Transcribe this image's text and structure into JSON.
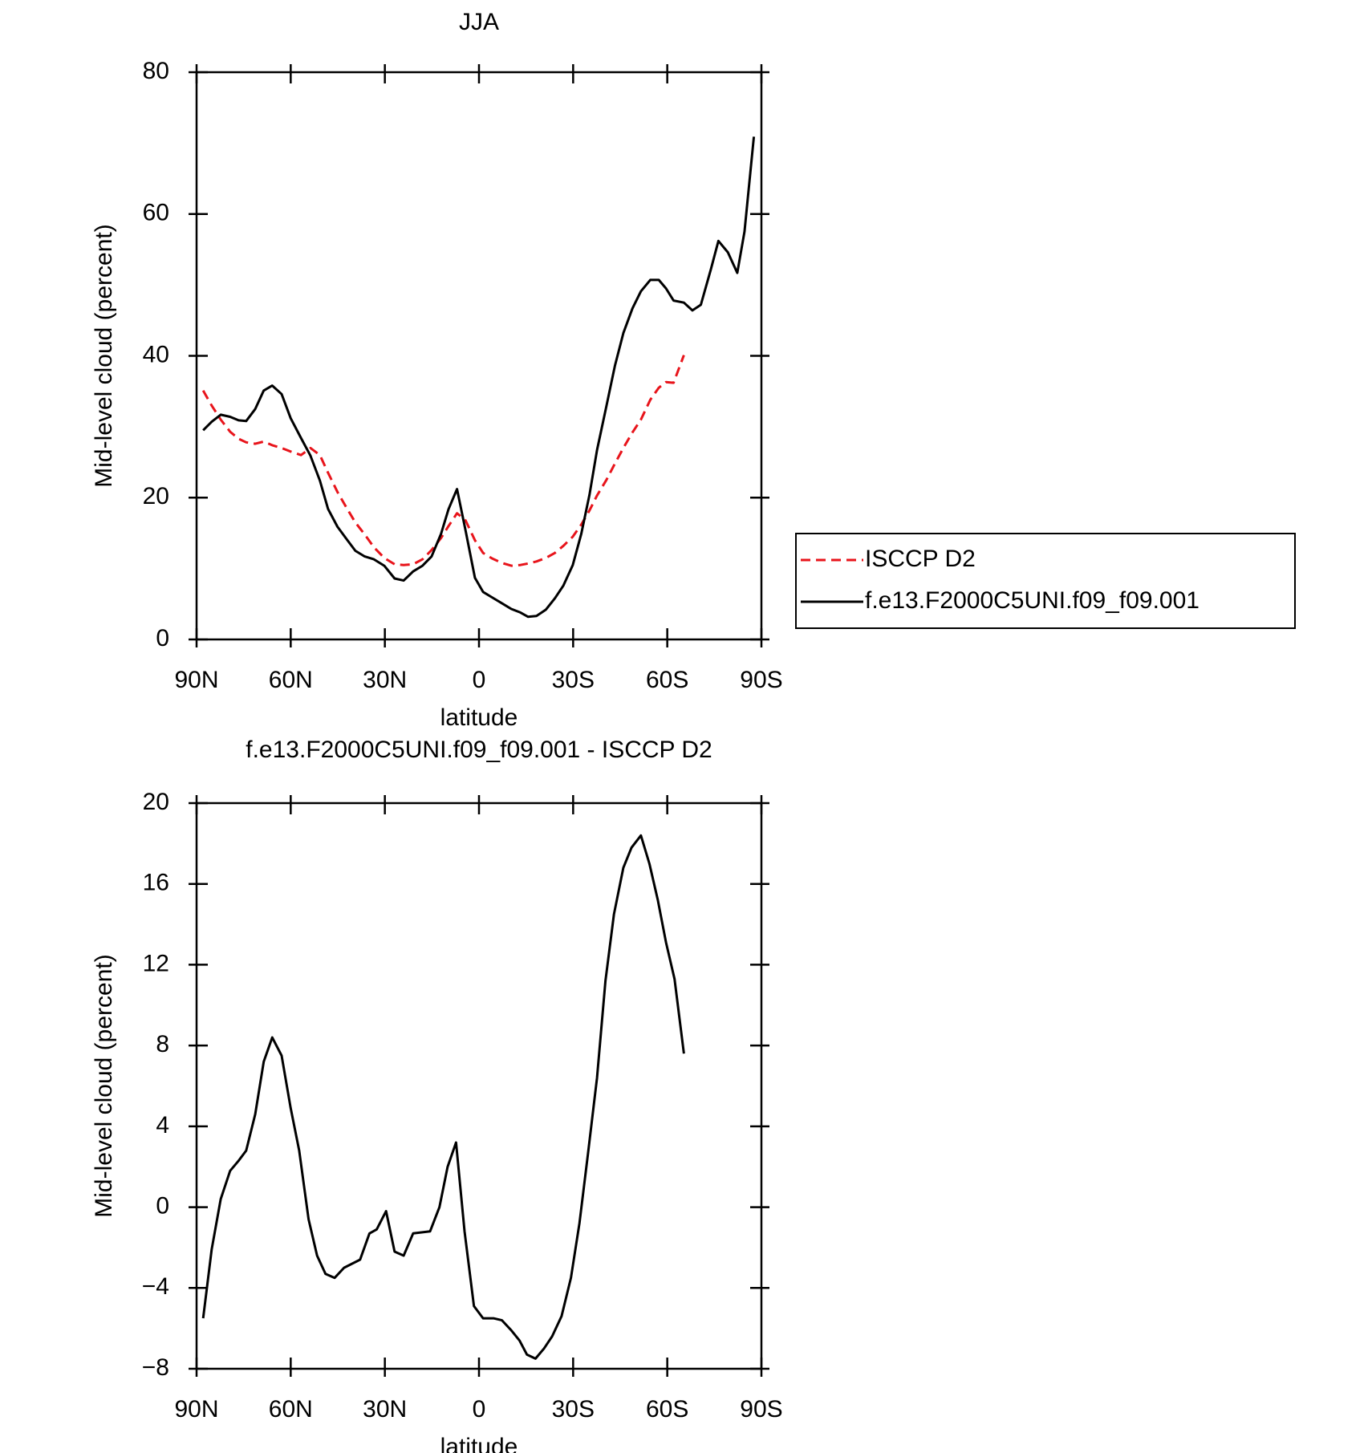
{
  "chart_data": [
    {
      "type": "line",
      "title": "JJA",
      "xlabel": "latitude",
      "ylabel": "Mid-level cloud (percent)",
      "xlim": [
        90,
        -90
      ],
      "xticks": [
        {
          "value": 90,
          "label": "90N"
        },
        {
          "value": 60,
          "label": "60N"
        },
        {
          "value": 30,
          "label": "30N"
        },
        0,
        {
          "value": -30,
          "label": "30S"
        },
        {
          "value": -60,
          "label": "60S"
        },
        {
          "value": -90,
          "label": "90S"
        }
      ],
      "ylim": [
        0,
        80
      ],
      "yticks": [
        0,
        20,
        40,
        60,
        80
      ],
      "legend": "right",
      "x": [
        87.9,
        85.2,
        82.3,
        79.3,
        76.6,
        74.2,
        71.3,
        68.6,
        65.9,
        62.9,
        60.0,
        56.7,
        53.7,
        50.7,
        48.1,
        45.1,
        42.1,
        39.4,
        36.4,
        33.5,
        30.2,
        26.9,
        24.0,
        21.0,
        18.0,
        15.1,
        12.1,
        9.7,
        7.0,
        4.3,
        1.3,
        -1.3,
        -4.3,
        -7.3,
        -10.3,
        -13.2,
        -15.6,
        -18.3,
        -21.3,
        -24.2,
        -26.9,
        -29.9,
        -32.6,
        -35.2,
        -37.6,
        -40.6,
        -43.3,
        -46.0,
        -48.9,
        -51.6,
        -54.6,
        -57.3,
        -59.6,
        -62.0,
        -65.3,
        -68.0,
        -70.7,
        -73.9,
        -76.3,
        -79.3,
        -82.3,
        -84.6,
        -87.6
      ],
      "series": [
        {
          "name": "ISCCP D2",
          "color": "#e8141b",
          "dash": true,
          "values": [
            35.1,
            33.0,
            31.0,
            29.3,
            28.3,
            27.8,
            27.6,
            27.9,
            27.4,
            27.0,
            26.5,
            26.0,
            27.0,
            26.0,
            23.5,
            20.8,
            18.5,
            16.5,
            14.8,
            13.0,
            11.5,
            10.6,
            10.5,
            10.6,
            11.3,
            12.6,
            14.3,
            16.0,
            17.8,
            16.8,
            14.0,
            12.2,
            11.4,
            10.8,
            10.4,
            10.5,
            10.7,
            11.0,
            11.5,
            12.2,
            13.2,
            14.5,
            16.2,
            18.2,
            20.3,
            22.5,
            24.8,
            27.0,
            29.2,
            31.0,
            33.8,
            35.5,
            36.3,
            36.2,
            40.1,
            null,
            null,
            null,
            null,
            null,
            null,
            null,
            null
          ]
        },
        {
          "name": "f.e13.F2000C5UNI.f09_f09.001",
          "color": "#000000",
          "dash": false,
          "values": [
            29.5,
            30.7,
            31.7,
            31.4,
            30.9,
            30.8,
            32.5,
            35.1,
            35.8,
            34.6,
            31.2,
            28.4,
            25.9,
            22.4,
            18.4,
            15.9,
            14.1,
            12.5,
            11.7,
            11.3,
            10.4,
            8.6,
            8.3,
            9.6,
            10.4,
            11.7,
            14.9,
            18.4,
            21.2,
            15.4,
            8.7,
            6.7,
            5.9,
            5.1,
            4.3,
            3.8,
            3.2,
            3.3,
            4.2,
            5.8,
            7.6,
            10.5,
            14.9,
            20.4,
            26.7,
            32.9,
            38.6,
            43.2,
            46.7,
            49.1,
            50.7,
            50.7,
            49.5,
            47.8,
            47.5,
            46.4,
            47.2,
            52.2,
            56.2,
            54.6,
            51.7,
            57.5,
            70.9
          ]
        }
      ]
    },
    {
      "type": "line",
      "title": "f.e13.F2000C5UNI.f09_f09.001 - ISCCP D2",
      "xlabel": "latitude",
      "ylabel": "Mid-level cloud (percent)",
      "xlim": [
        90,
        -90
      ],
      "xticks": [
        {
          "value": 90,
          "label": "90N"
        },
        {
          "value": 60,
          "label": "60N"
        },
        {
          "value": 30,
          "label": "30N"
        },
        0,
        {
          "value": -30,
          "label": "30S"
        },
        {
          "value": -60,
          "label": "60S"
        },
        {
          "value": -90,
          "label": "90S"
        }
      ],
      "ylim": [
        -8,
        20
      ],
      "yticks": [
        {
          "value": -8,
          "label": "−8"
        },
        {
          "value": -4,
          "label": "−4"
        },
        0,
        4,
        8,
        12,
        16,
        20
      ],
      "x": [
        87.9,
        85.2,
        82.3,
        79.3,
        76.6,
        74.2,
        71.3,
        68.6,
        65.9,
        62.9,
        60.0,
        57.3,
        54.3,
        51.6,
        48.9,
        46.0,
        43.0,
        37.9,
        34.9,
        32.6,
        29.6,
        26.9,
        24.0,
        21.0,
        15.6,
        12.6,
        10.0,
        7.3,
        4.6,
        1.6,
        -1.3,
        -4.6,
        -7.3,
        -10.3,
        -12.9,
        -15.3,
        -18.0,
        -20.7,
        -23.3,
        -26.3,
        -29.3,
        -32.0,
        -34.7,
        -37.6,
        -40.3,
        -43.0,
        -46.0,
        -48.6,
        -51.6,
        -54.3,
        -57.0,
        -59.6,
        -62.3,
        -65.3
      ],
      "series": [
        {
          "color": "#000000",
          "dash": false,
          "values": [
            -5.5,
            -2.1,
            0.4,
            1.8,
            2.3,
            2.8,
            4.6,
            7.2,
            8.4,
            7.5,
            4.9,
            2.8,
            -0.6,
            -2.4,
            -3.3,
            -3.5,
            -3.0,
            -2.6,
            -1.3,
            -1.1,
            -0.2,
            -2.2,
            -2.4,
            -1.3,
            -1.2,
            0.0,
            2.0,
            3.2,
            -1.2,
            -4.9,
            -5.5,
            -5.5,
            -5.6,
            -6.1,
            -6.6,
            -7.3,
            -7.5,
            -7.0,
            -6.4,
            -5.4,
            -3.5,
            -0.8,
            2.6,
            6.4,
            11.2,
            14.5,
            16.8,
            17.8,
            18.4,
            17.0,
            15.2,
            13.1,
            11.3,
            7.6
          ]
        }
      ]
    }
  ]
}
